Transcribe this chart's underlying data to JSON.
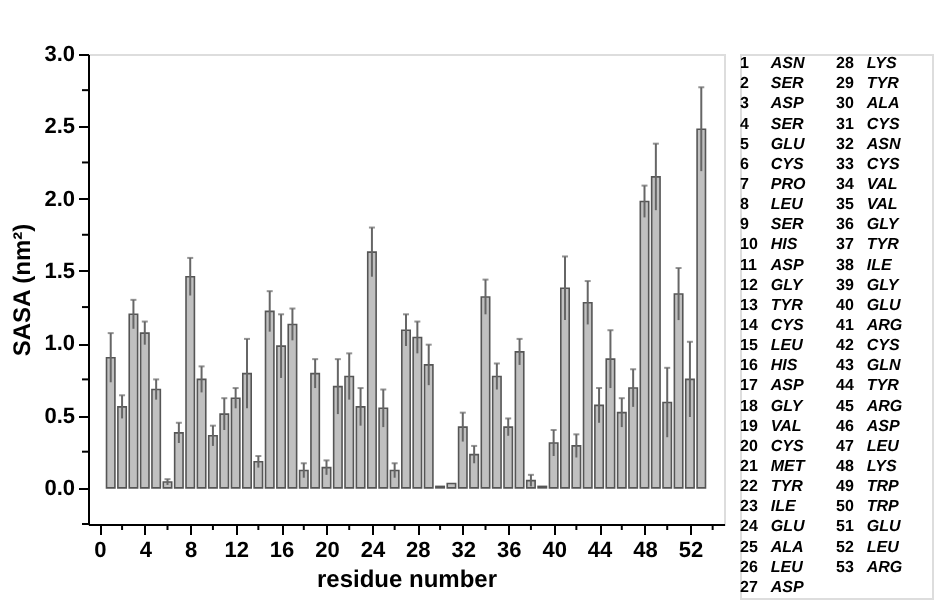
{
  "chart_data": {
    "type": "bar",
    "xlabel": "residue number",
    "ylabel": "SASA (nm²)",
    "x": [
      1,
      2,
      3,
      4,
      5,
      6,
      7,
      8,
      9,
      10,
      11,
      12,
      13,
      14,
      15,
      16,
      17,
      18,
      19,
      20,
      21,
      22,
      23,
      24,
      25,
      26,
      27,
      28,
      29,
      30,
      31,
      32,
      33,
      34,
      35,
      36,
      37,
      38,
      39,
      40,
      41,
      42,
      43,
      44,
      45,
      46,
      47,
      48,
      49,
      50,
      51,
      52,
      53
    ],
    "values": [
      0.9,
      0.56,
      1.2,
      1.07,
      0.68,
      0.04,
      0.38,
      1.46,
      0.75,
      0.36,
      0.51,
      0.62,
      0.79,
      0.18,
      1.22,
      0.98,
      1.13,
      0.12,
      0.79,
      0.14,
      0.7,
      0.77,
      0.56,
      1.63,
      0.55,
      0.12,
      1.09,
      1.04,
      0.85,
      0.01,
      0.03,
      0.42,
      0.23,
      1.32,
      0.77,
      0.42,
      0.94,
      0.05,
      0.01,
      0.31,
      1.38,
      0.29,
      1.28,
      0.57,
      0.89,
      0.52,
      0.69,
      1.98,
      2.15,
      0.59,
      1.34,
      0.75,
      2.48
    ],
    "errors": [
      0.17,
      0.08,
      0.1,
      0.08,
      0.07,
      0.02,
      0.07,
      0.13,
      0.09,
      0.07,
      0.11,
      0.07,
      0.24,
      0.04,
      0.14,
      0.22,
      0.11,
      0.05,
      0.1,
      0.05,
      0.19,
      0.16,
      0.13,
      0.17,
      0.13,
      0.05,
      0.11,
      0.11,
      0.14,
      null,
      null,
      0.1,
      0.06,
      0.12,
      0.09,
      0.06,
      0.09,
      0.04,
      null,
      0.09,
      0.22,
      0.08,
      0.15,
      0.12,
      0.2,
      0.1,
      0.13,
      0.11,
      0.23,
      0.24,
      0.18,
      0.26,
      0.29
    ],
    "color": "#c0c0c0",
    "xlim": [
      -1,
      55
    ],
    "xticks": [
      0,
      {
        "value": 2,
        "label": null
      },
      4,
      {
        "value": 6,
        "label": null
      },
      8,
      {
        "value": 10,
        "label": null
      },
      12,
      {
        "value": 14,
        "label": null
      },
      16,
      {
        "value": 18,
        "label": null
      },
      20,
      {
        "value": 22,
        "label": null
      },
      24,
      {
        "value": 26,
        "label": null
      },
      28,
      {
        "value": 30,
        "label": null
      },
      32,
      {
        "value": 34,
        "label": null
      },
      36,
      {
        "value": 38,
        "label": null
      },
      40,
      {
        "value": 42,
        "label": null
      },
      44,
      {
        "value": 46,
        "label": null
      },
      48,
      {
        "value": 50,
        "label": null
      },
      52,
      {
        "value": 54,
        "label": null
      }
    ],
    "ylim": [
      -0.25,
      3.0
    ],
    "yticks": [
      {
        "value": -0.25,
        "label": null
      },
      {
        "value": 0.0,
        "label": "0.0"
      },
      {
        "value": 0.25,
        "label": null
      },
      {
        "value": 0.5,
        "label": "0.5"
      },
      {
        "value": 0.75,
        "label": null
      },
      {
        "value": 1.0,
        "label": "1.0"
      },
      {
        "value": 1.25,
        "label": null
      },
      {
        "value": 1.5,
        "label": "1.5"
      },
      {
        "value": 1.75,
        "label": null
      },
      {
        "value": 2.0,
        "label": "2.0"
      },
      {
        "value": 2.25,
        "label": null
      },
      {
        "value": 2.5,
        "label": "2.5"
      },
      {
        "value": 2.75,
        "label": null
      },
      {
        "value": 3.0,
        "label": "3.0"
      }
    ],
    "grid": false,
    "annotations": [
      "1 ASN",
      "2 SER",
      "3 ASP",
      "4 SER",
      "5 GLU",
      "6 CYS",
      "7 PRO",
      "8 LEU",
      "9 SER",
      "10 HIS",
      "11 ASP",
      "12 GLY",
      "13 TYR",
      "14 CYS",
      "15 LEU",
      "16 HIS",
      "17 ASP",
      "18 GLY",
      "19 VAL",
      "20 CYS",
      "21 MET",
      "22 TYR",
      "23 ILE",
      "24 GLU",
      "25 ALA",
      "26 LEU",
      "27 ASP",
      "28 LYS",
      "29 TYR",
      "30 ALA",
      "31 CYS",
      "32 ASN",
      "33 CYS",
      "34 VAL",
      "35 VAL",
      "36 GLY",
      "37 TYR",
      "38 ILE",
      "39 GLY",
      "40 GLU",
      "41 ARG",
      "42 CYS",
      "43 GLN",
      "44 TYR",
      "45 ARG",
      "46 ASP",
      "47 LEU",
      "48 LYS",
      "49 TRP",
      "50 TRP",
      "51 GLU",
      "52 LEU",
      "53 ARG"
    ]
  }
}
